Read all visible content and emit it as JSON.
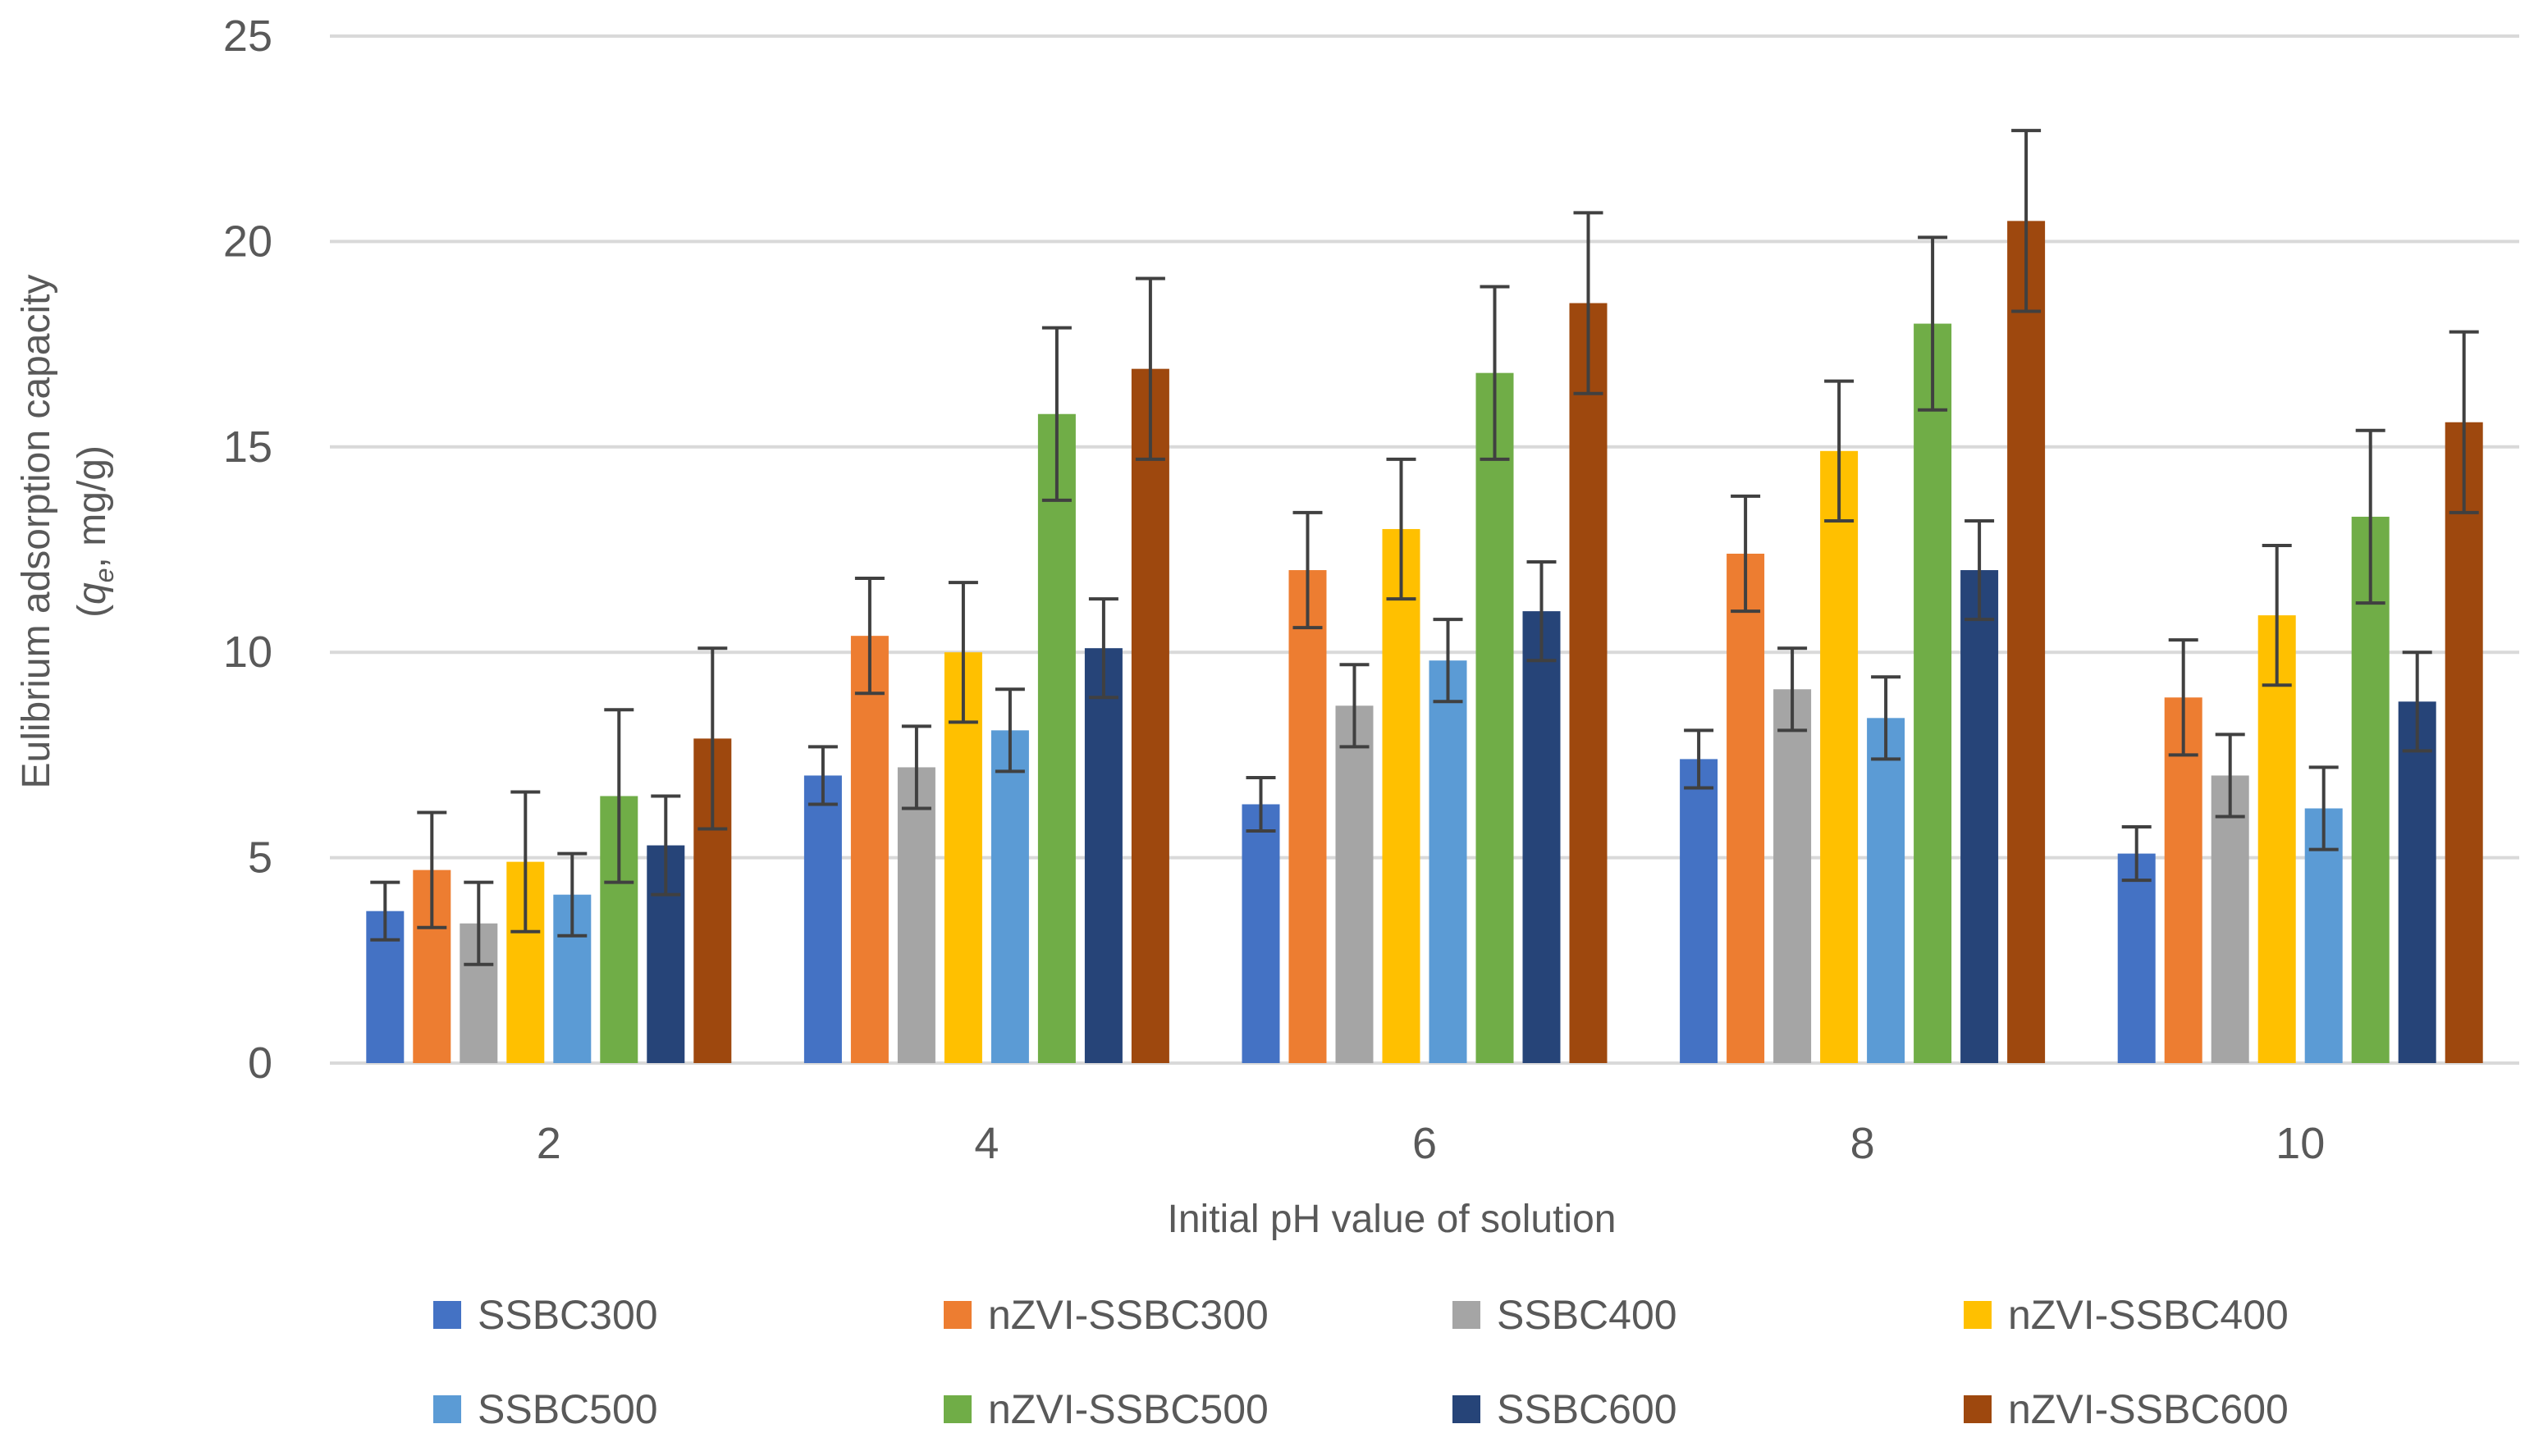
{
  "chart_data": {
    "type": "bar",
    "title": "",
    "xlabel": "Initial pH value of solution",
    "ylabel_line1": "Eulibrium adsorption capacity",
    "ylabel_line2_prefix": "(",
    "ylabel_line2_q": "q",
    "ylabel_line2_sub": "e",
    "ylabel_line2_suffix": ", mg/g)",
    "ylim": [
      0,
      25
    ],
    "yticks": [
      0,
      5,
      10,
      15,
      20,
      25
    ],
    "grid": true,
    "legend_position": "bottom",
    "categories": [
      "2",
      "4",
      "6",
      "8",
      "10"
    ],
    "series": [
      {
        "name": "SSBC300",
        "color": "#4472C4",
        "values": [
          3.7,
          7.0,
          6.3,
          7.4,
          5.1
        ],
        "errors": [
          0.7,
          0.7,
          0.65,
          0.7,
          0.65
        ]
      },
      {
        "name": "nZVI-SSBC300",
        "color": "#ED7D31",
        "values": [
          4.7,
          10.4,
          12.0,
          12.4,
          8.9
        ],
        "errors": [
          1.4,
          1.4,
          1.4,
          1.4,
          1.4
        ]
      },
      {
        "name": "SSBC400",
        "color": "#A5A5A5",
        "values": [
          3.4,
          7.2,
          8.7,
          9.1,
          7.0
        ],
        "errors": [
          1.0,
          1.0,
          1.0,
          1.0,
          1.0
        ]
      },
      {
        "name": "nZVI-SSBC400",
        "color": "#FFC000",
        "values": [
          4.9,
          10.0,
          13.0,
          14.9,
          10.9
        ],
        "errors": [
          1.7,
          1.7,
          1.7,
          1.7,
          1.7
        ]
      },
      {
        "name": "SSBC500",
        "color": "#5B9BD5",
        "values": [
          4.1,
          8.1,
          9.8,
          8.4,
          6.2
        ],
        "errors": [
          1.0,
          1.0,
          1.0,
          1.0,
          1.0
        ]
      },
      {
        "name": "nZVI-SSBC500",
        "color": "#70AD47",
        "values": [
          6.5,
          15.8,
          16.8,
          18.0,
          13.3
        ],
        "errors": [
          2.1,
          2.1,
          2.1,
          2.1,
          2.1
        ]
      },
      {
        "name": "SSBC600",
        "color": "#264478",
        "values": [
          5.3,
          10.1,
          11.0,
          12.0,
          8.8
        ],
        "errors": [
          1.2,
          1.2,
          1.2,
          1.2,
          1.2
        ]
      },
      {
        "name": "nZVI-SSBC600",
        "color": "#9E480E",
        "values": [
          7.9,
          16.9,
          18.5,
          20.5,
          15.6
        ],
        "errors": [
          2.2,
          2.2,
          2.2,
          2.2,
          2.2
        ]
      }
    ]
  }
}
